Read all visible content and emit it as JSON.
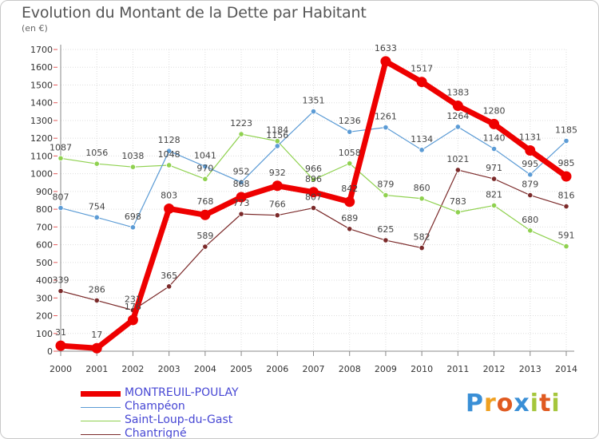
{
  "header": {
    "title": "Evolution du Montant de la Dette par Habitant",
    "unit": "(en €)"
  },
  "logo": {
    "parts": [
      "P",
      "r",
      "o",
      "x",
      "i",
      "t",
      "i"
    ],
    "colors": [
      "#3a8fd6",
      "#f0a020",
      "#e05a20",
      "#3a8fd6",
      "#a5c63b",
      "#e05a20",
      "#a5c63b"
    ]
  },
  "chart_data": {
    "type": "line",
    "title": "Evolution du Montant de la Dette par Habitant",
    "ylabel": "(en €)",
    "x": [
      "2000",
      "2001",
      "2002",
      "2003",
      "2004",
      "2005",
      "2006",
      "2007",
      "2008",
      "2009",
      "2010",
      "2011",
      "2012",
      "2013",
      "2014"
    ],
    "ylim": [
      0,
      1700
    ],
    "yticks": [
      0,
      100,
      200,
      300,
      400,
      500,
      600,
      700,
      800,
      900,
      1000,
      1100,
      1200,
      1300,
      1400,
      1500,
      1600,
      1700
    ],
    "grid": true,
    "legend_position": "bottom-left",
    "series": [
      {
        "name": "MONTREUIL-POULAY",
        "color": "#ee0000",
        "values": [
          31,
          17,
          176,
          803,
          768,
          868,
          932,
          896,
          842,
          1633,
          1517,
          1383,
          1280,
          1131,
          985
        ],
        "labels": [
          "31",
          "17",
          "176",
          "803",
          "768",
          "868",
          "932",
          "896",
          "842",
          "1633",
          "1517",
          "1383",
          "1280",
          "1131",
          "985"
        ]
      },
      {
        "name": "Champéon",
        "color": "#5b9bd5",
        "values": [
          807,
          754,
          698,
          1128,
          1041,
          952,
          1156,
          1351,
          1236,
          1261,
          1134,
          1264,
          1140,
          995,
          1185
        ],
        "labels": [
          "807",
          "754",
          "698",
          "1128",
          "1041",
          "952",
          "1156",
          "1351",
          "1236",
          "1261",
          "1134",
          "1264",
          "1140",
          "995",
          "1185"
        ]
      },
      {
        "name": "Saint-Loup-du-Gast",
        "color": "#8fd14f",
        "values": [
          1087,
          1056,
          1038,
          1048,
          970,
          1223,
          1184,
          966,
          1058,
          879,
          860,
          783,
          821,
          680,
          591
        ],
        "labels": [
          "1087",
          "1056",
          "1038",
          "1048",
          "970",
          "1223",
          "1184",
          "966",
          "1058",
          "879",
          "860",
          "783",
          "821",
          "680",
          "591"
        ]
      },
      {
        "name": "Chantrigné",
        "color": "#7b2a2a",
        "values": [
          339,
          286,
          231,
          365,
          589,
          773,
          766,
          807,
          689,
          625,
          582,
          1021,
          971,
          879,
          816
        ],
        "labels": [
          "339",
          "286",
          "231",
          "365",
          "589",
          "773",
          "766",
          "807",
          "689",
          "625",
          "582",
          "1021",
          "971",
          "879",
          "816"
        ]
      }
    ]
  }
}
